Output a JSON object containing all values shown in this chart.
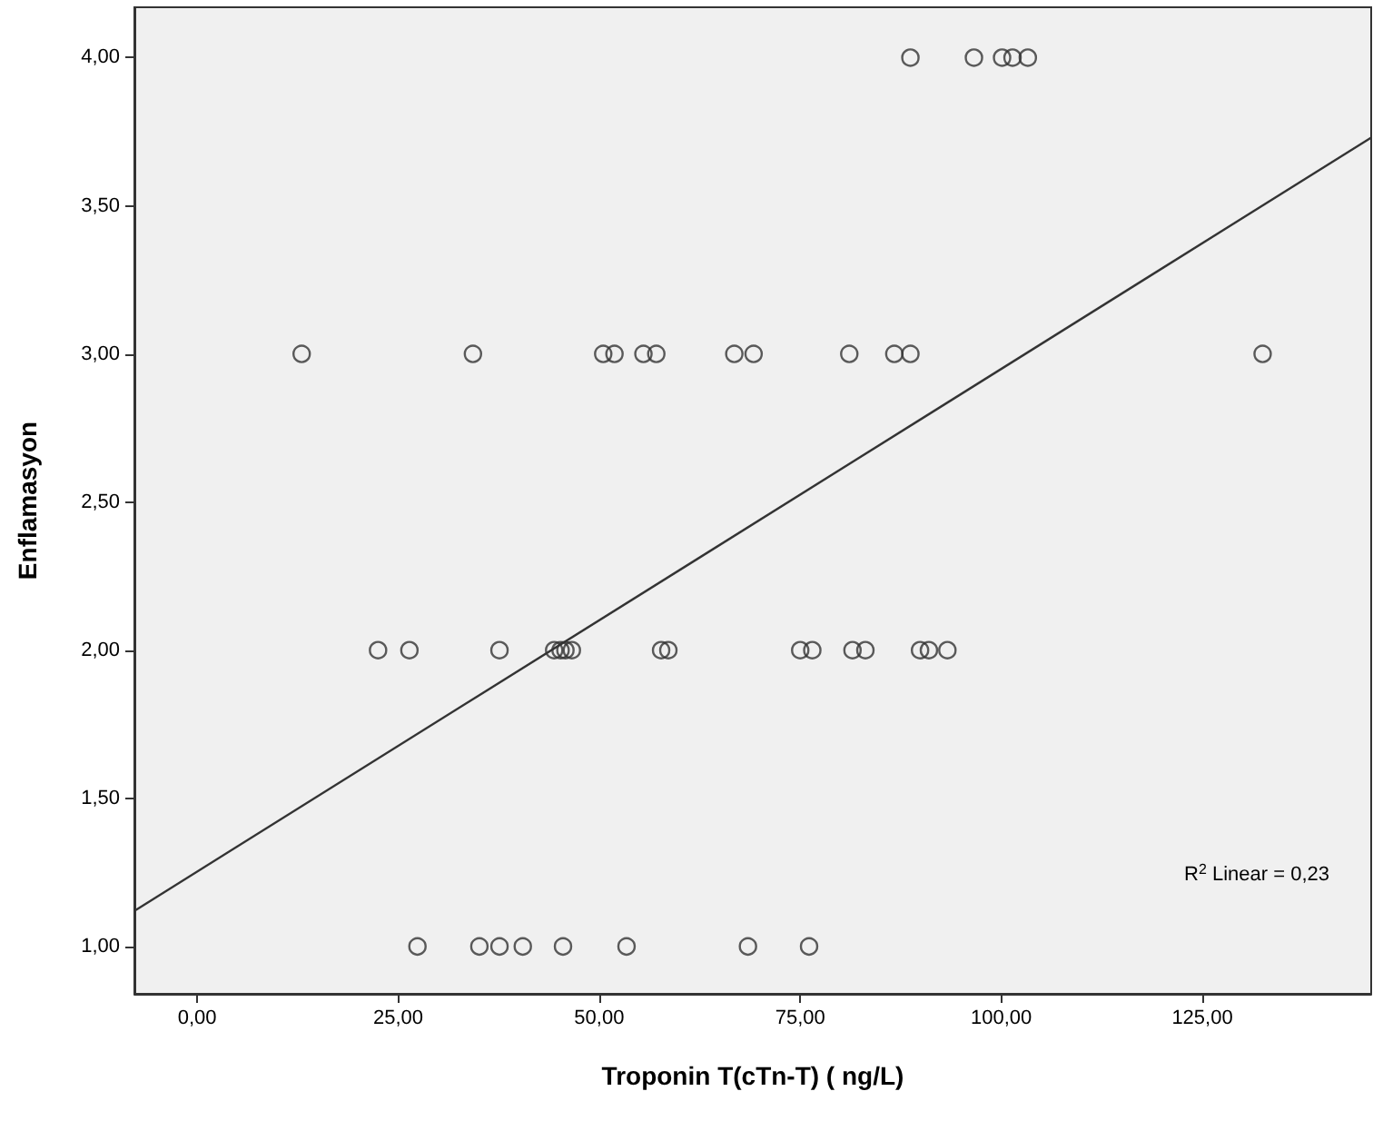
{
  "chart_data": {
    "type": "scatter",
    "xlabel": "Troponin T(cTn-T) ( ng/L)",
    "ylabel": "Enflamasyon",
    "grid": false,
    "xlim": [
      -7.8,
      146
    ],
    "ylim": [
      0.84,
      4.17
    ],
    "xticks": [
      {
        "value": 0,
        "label": "0,00"
      },
      {
        "value": 25,
        "label": "25,00"
      },
      {
        "value": 50,
        "label": "50,00"
      },
      {
        "value": 75,
        "label": "75,00"
      },
      {
        "value": 100,
        "label": "100,00"
      },
      {
        "value": 125,
        "label": "125,00"
      }
    ],
    "yticks": [
      {
        "value": 1,
        "label": "1,00"
      },
      {
        "value": 1.5,
        "label": "1,50"
      },
      {
        "value": 2,
        "label": "2,00"
      },
      {
        "value": 2.5,
        "label": "2,50"
      },
      {
        "value": 3,
        "label": "3,00"
      },
      {
        "value": 3.5,
        "label": "3,50"
      },
      {
        "value": 4,
        "label": "4,00"
      }
    ],
    "annotations": [
      "R$^{2}$ Linear = 0,23"
    ],
    "series": [
      {
        "color": "#333333",
        "marker": "circle",
        "x": [
          88.7,
          96.6,
          100.1,
          101.4,
          103.3,
          13.0,
          34.3,
          50.5,
          51.9,
          55.5,
          57.1,
          66.8,
          69.2,
          81.1,
          86.7,
          88.7,
          132.5,
          22.5,
          26.4,
          37.6,
          44.4,
          45.2,
          45.8,
          46.6,
          57.7,
          58.6,
          75.0,
          76.5,
          81.5,
          83.1,
          89.9,
          91.0,
          93.3,
          27.4,
          35.1,
          37.6,
          40.5,
          45.5,
          53.4,
          68.5,
          76.1
        ],
        "values": [
          4,
          4,
          4,
          4,
          4,
          3,
          3,
          3,
          3,
          3,
          3,
          3,
          3,
          3,
          3,
          3,
          3,
          2,
          2,
          2,
          2,
          2,
          2,
          2,
          2,
          2,
          2,
          2,
          2,
          2,
          2,
          2,
          2,
          1,
          1,
          1,
          1,
          1,
          1,
          1,
          1
        ]
      },
      {
        "type": "line",
        "marker": "none",
        "color": "#333333",
        "x": [
          -7.8,
          146
        ],
        "values": [
          1.12,
          3.73
        ]
      }
    ]
  }
}
